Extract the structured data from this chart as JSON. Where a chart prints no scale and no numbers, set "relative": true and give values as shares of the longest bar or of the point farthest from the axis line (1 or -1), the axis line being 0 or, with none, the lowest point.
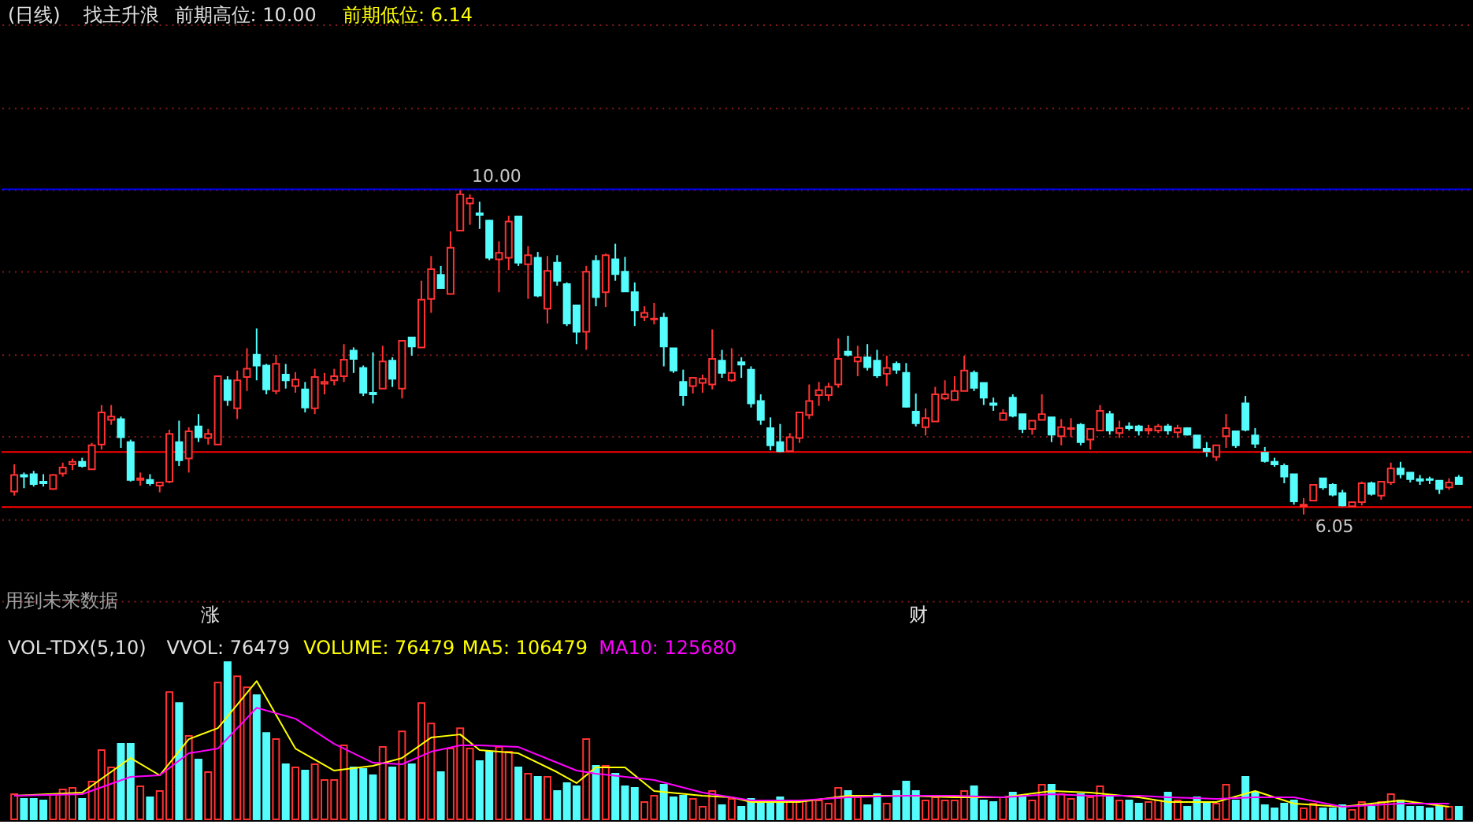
{
  "chart_data": [
    {
      "type": "candlestick",
      "title": "(日线)",
      "subtitle": "找主升浪",
      "categories": [
        null,
        null,
        null,
        null,
        null,
        null,
        null,
        null,
        null,
        null,
        null,
        null,
        null,
        null,
        null,
        null,
        null,
        null,
        null,
        null,
        null,
        null,
        null,
        null,
        null,
        null,
        null,
        null,
        null,
        null,
        null,
        null,
        null,
        null,
        null,
        null,
        null,
        null,
        null,
        null,
        null,
        null,
        null,
        null,
        null,
        null,
        null,
        null,
        null,
        null,
        null,
        null,
        null,
        null,
        null,
        null,
        null,
        null,
        null,
        null,
        null,
        null,
        null,
        null,
        null,
        null,
        null,
        null,
        null,
        null,
        null,
        null,
        null,
        null,
        null,
        null,
        null,
        null,
        null,
        null,
        null,
        null,
        null,
        null,
        null,
        null,
        null,
        null,
        null,
        null,
        null,
        null,
        null,
        null,
        null,
        null,
        null,
        null,
        null,
        null,
        null,
        null,
        null,
        null,
        null,
        null,
        null,
        null,
        null,
        null,
        null,
        null,
        null,
        null,
        null,
        null,
        null,
        null,
        null,
        null,
        null,
        null,
        null,
        null,
        null,
        null,
        null,
        null,
        null,
        null,
        null,
        null,
        null,
        null,
        null,
        null,
        null,
        null,
        null,
        null,
        null,
        null,
        null,
        null,
        null,
        null,
        null,
        null,
        null,
        null
      ],
      "ohlc": [
        [
          6.33,
          6.66,
          6.28,
          6.53
        ],
        [
          6.53,
          6.56,
          6.37,
          6.51
        ],
        [
          6.54,
          6.58,
          6.39,
          6.42
        ],
        [
          6.45,
          6.54,
          6.39,
          6.43
        ],
        [
          6.36,
          6.54,
          6.35,
          6.53
        ],
        [
          6.55,
          6.68,
          6.51,
          6.62
        ],
        [
          6.66,
          6.73,
          6.59,
          6.69
        ],
        [
          6.69,
          6.74,
          6.62,
          6.64
        ],
        [
          6.6,
          6.92,
          6.6,
          6.89
        ],
        [
          6.9,
          7.38,
          6.84,
          7.29
        ],
        [
          7.2,
          7.38,
          7.14,
          7.24
        ],
        [
          7.21,
          7.24,
          6.86,
          6.99
        ],
        [
          6.93,
          6.96,
          6.45,
          6.47
        ],
        [
          6.47,
          6.56,
          6.4,
          6.49
        ],
        [
          6.47,
          6.54,
          6.4,
          6.43
        ],
        [
          6.4,
          6.44,
          6.32,
          6.44
        ],
        [
          6.45,
          7.08,
          6.43,
          7.03
        ],
        [
          6.93,
          7.19,
          6.64,
          6.71
        ],
        [
          6.73,
          7.11,
          6.56,
          7.06
        ],
        [
          7.12,
          7.27,
          6.93,
          6.99
        ],
        [
          6.98,
          7.09,
          6.9,
          7.03
        ],
        [
          6.9,
          7.73,
          6.9,
          7.73
        ],
        [
          7.68,
          7.73,
          7.37,
          7.44
        ],
        [
          7.34,
          7.8,
          7.21,
          7.68
        ],
        [
          7.72,
          8.07,
          7.55,
          7.82
        ],
        [
          7.99,
          8.31,
          7.68,
          7.86
        ],
        [
          7.86,
          7.88,
          7.51,
          7.57
        ],
        [
          7.55,
          7.99,
          7.51,
          7.88
        ],
        [
          7.75,
          7.88,
          7.58,
          7.68
        ],
        [
          7.61,
          7.78,
          7.53,
          7.69
        ],
        [
          7.57,
          7.66,
          7.29,
          7.35
        ],
        [
          7.34,
          7.82,
          7.27,
          7.72
        ],
        [
          7.64,
          7.77,
          7.51,
          7.66
        ],
        [
          7.68,
          7.82,
          7.62,
          7.73
        ],
        [
          7.73,
          8.12,
          7.66,
          7.93
        ],
        [
          8.04,
          8.08,
          7.77,
          7.94
        ],
        [
          7.83,
          7.86,
          7.49,
          7.53
        ],
        [
          7.53,
          8.02,
          7.4,
          7.51
        ],
        [
          7.58,
          8.1,
          7.58,
          7.91
        ],
        [
          7.92,
          7.96,
          7.6,
          7.7
        ],
        [
          7.58,
          8.16,
          7.46,
          8.16
        ],
        [
          8.2,
          8.2,
          7.98,
          8.09
        ],
        [
          8.08,
          8.89,
          8.08,
          8.66
        ],
        [
          8.67,
          9.19,
          8.5,
          9.03
        ],
        [
          8.96,
          9.07,
          8.8,
          8.8
        ],
        [
          8.73,
          9.49,
          8.73,
          9.29
        ],
        [
          9.5,
          10.0,
          9.5,
          9.94
        ],
        [
          9.83,
          9.94,
          9.57,
          9.89
        ],
        [
          9.71,
          9.85,
          9.52,
          9.69
        ],
        [
          9.62,
          9.63,
          9.14,
          9.17
        ],
        [
          9.15,
          9.37,
          8.75,
          9.23
        ],
        [
          9.17,
          9.68,
          9.02,
          9.61
        ],
        [
          9.67,
          9.67,
          9.07,
          9.11
        ],
        [
          9.09,
          9.31,
          8.67,
          9.2
        ],
        [
          9.17,
          9.24,
          8.69,
          8.71
        ],
        [
          8.55,
          9.19,
          8.37,
          9.01
        ],
        [
          9.11,
          9.2,
          8.83,
          8.89
        ],
        [
          8.85,
          8.87,
          8.34,
          8.37
        ],
        [
          8.59,
          8.59,
          8.12,
          8.27
        ],
        [
          8.27,
          9.07,
          8.05,
          9.0
        ],
        [
          9.13,
          9.2,
          8.58,
          8.69
        ],
        [
          8.75,
          9.22,
          8.57,
          9.2
        ],
        [
          9.15,
          9.34,
          8.89,
          8.97
        ],
        [
          9.0,
          9.18,
          8.76,
          8.76
        ],
        [
          8.75,
          8.87,
          8.34,
          8.53
        ],
        [
          8.45,
          8.58,
          8.4,
          8.5
        ],
        [
          8.42,
          8.62,
          8.36,
          8.43
        ],
        [
          8.44,
          8.5,
          7.85,
          8.09
        ],
        [
          8.07,
          8.07,
          7.77,
          7.8
        ],
        [
          7.66,
          7.81,
          7.37,
          7.5
        ],
        [
          7.61,
          7.71,
          7.52,
          7.71
        ],
        [
          7.65,
          7.75,
          7.53,
          7.7
        ],
        [
          7.63,
          8.3,
          7.57,
          7.94
        ],
        [
          7.92,
          8.05,
          7.71,
          7.77
        ],
        [
          7.68,
          8.07,
          7.66,
          7.77
        ],
        [
          7.9,
          7.96,
          7.71,
          7.87
        ],
        [
          7.81,
          7.85,
          7.35,
          7.4
        ],
        [
          7.43,
          7.51,
          7.14,
          7.2
        ],
        [
          7.1,
          7.23,
          6.83,
          6.89
        ],
        [
          6.93,
          7.15,
          6.8,
          6.82
        ],
        [
          6.82,
          7.04,
          6.82,
          6.99
        ],
        [
          6.98,
          7.29,
          6.92,
          7.29
        ],
        [
          7.26,
          7.63,
          7.21,
          7.43
        ],
        [
          7.5,
          7.66,
          7.37,
          7.56
        ],
        [
          7.5,
          7.65,
          7.43,
          7.6
        ],
        [
          7.63,
          8.19,
          7.59,
          7.94
        ],
        [
          8.03,
          8.22,
          7.97,
          7.99
        ],
        [
          7.91,
          8.1,
          7.73,
          7.96
        ],
        [
          7.96,
          8.12,
          7.8,
          7.84
        ],
        [
          7.92,
          8.05,
          7.71,
          7.74
        ],
        [
          7.76,
          7.98,
          7.61,
          7.83
        ],
        [
          7.88,
          7.91,
          7.76,
          7.81
        ],
        [
          7.77,
          7.89,
          7.35,
          7.36
        ],
        [
          7.3,
          7.52,
          7.12,
          7.16
        ],
        [
          7.11,
          7.34,
          7.01,
          7.22
        ],
        [
          7.18,
          7.6,
          7.18,
          7.51
        ],
        [
          7.46,
          7.68,
          7.44,
          7.51
        ],
        [
          7.44,
          7.73,
          7.44,
          7.55
        ],
        [
          7.55,
          7.98,
          7.55,
          7.8
        ],
        [
          7.77,
          7.8,
          7.55,
          7.59
        ],
        [
          7.65,
          7.65,
          7.38,
          7.47
        ],
        [
          7.4,
          7.47,
          7.31,
          7.38
        ],
        [
          7.2,
          7.33,
          7.2,
          7.28
        ],
        [
          7.47,
          7.51,
          7.23,
          7.25
        ],
        [
          7.27,
          7.27,
          7.04,
          7.09
        ],
        [
          7.09,
          7.19,
          7.02,
          7.19
        ],
        [
          7.2,
          7.51,
          7.2,
          7.27
        ],
        [
          7.23,
          7.23,
          6.93,
          7.02
        ],
        [
          7.0,
          7.21,
          6.89,
          7.11
        ],
        [
          7.09,
          7.22,
          6.99,
          7.1
        ],
        [
          7.14,
          7.16,
          6.89,
          6.93
        ],
        [
          6.96,
          7.09,
          6.84,
          7.09
        ],
        [
          7.07,
          7.38,
          7.07,
          7.31
        ],
        [
          7.27,
          7.31,
          7.02,
          7.07
        ],
        [
          7.04,
          7.19,
          6.98,
          7.1
        ],
        [
          7.12,
          7.17,
          7.07,
          7.1
        ],
        [
          7.12,
          7.14,
          7.01,
          7.07
        ],
        [
          7.07,
          7.14,
          7.02,
          7.09
        ],
        [
          7.07,
          7.15,
          7.04,
          7.12
        ],
        [
          7.12,
          7.15,
          7.02,
          7.07
        ],
        [
          7.05,
          7.14,
          6.98,
          7.1
        ],
        [
          7.1,
          7.11,
          7.01,
          7.02
        ],
        [
          7.01,
          7.01,
          6.86,
          6.86
        ],
        [
          6.85,
          6.93,
          6.75,
          6.82
        ],
        [
          6.75,
          6.89,
          6.7,
          6.89
        ],
        [
          7.0,
          7.27,
          6.86,
          7.1
        ],
        [
          7.06,
          7.07,
          6.86,
          6.89
        ],
        [
          7.4,
          7.49,
          7.06,
          7.08
        ],
        [
          7.01,
          7.1,
          6.86,
          6.91
        ],
        [
          6.8,
          6.87,
          6.68,
          6.7
        ],
        [
          6.69,
          6.74,
          6.63,
          6.66
        ],
        [
          6.64,
          6.67,
          6.43,
          6.51
        ],
        [
          6.54,
          6.54,
          6.17,
          6.21
        ],
        [
          6.15,
          6.25,
          6.05,
          6.17
        ],
        [
          6.22,
          6.41,
          6.22,
          6.41
        ],
        [
          6.49,
          6.49,
          6.35,
          6.38
        ],
        [
          6.41,
          6.43,
          6.27,
          6.29
        ],
        [
          6.31,
          6.35,
          6.14,
          6.16
        ],
        [
          6.15,
          6.2,
          6.14,
          6.2
        ],
        [
          6.2,
          6.45,
          6.16,
          6.43
        ],
        [
          6.43,
          6.45,
          6.28,
          6.3
        ],
        [
          6.28,
          6.45,
          6.23,
          6.45
        ],
        [
          6.44,
          6.68,
          6.41,
          6.61
        ],
        [
          6.61,
          6.69,
          6.49,
          6.54
        ],
        [
          6.56,
          6.56,
          6.44,
          6.48
        ],
        [
          6.48,
          6.53,
          6.41,
          6.46
        ],
        [
          6.48,
          6.51,
          6.42,
          6.47
        ],
        [
          6.46,
          6.46,
          6.3,
          6.36
        ],
        [
          6.38,
          6.49,
          6.35,
          6.44
        ],
        [
          6.5,
          6.53,
          6.42,
          6.42
        ]
      ],
      "colors": [
        "#ff3232",
        "#54fcfc",
        "#54fcfc",
        "#54fcfc",
        "#ff3232",
        "#ff3232",
        "#ff3232",
        "#54fcfc",
        "#ff3232",
        "#ff3232",
        "#ff3232",
        "#54fcfc",
        "#54fcfc",
        "#ff3232",
        "#54fcfc",
        "#ff3232",
        "#ff3232",
        "#54fcfc",
        "#ff3232",
        "#54fcfc",
        "#ff3232",
        "#ff3232",
        "#54fcfc",
        "#ff3232",
        "#ff3232",
        "#54fcfc",
        "#54fcfc",
        "#ff3232",
        "#54fcfc",
        "#ff3232",
        "#54fcfc",
        "#ff3232",
        "#ff3232",
        "#ff3232",
        "#ff3232",
        "#54fcfc",
        "#54fcfc",
        "#54fcfc",
        "#ff3232",
        "#54fcfc",
        "#ff3232",
        "#54fcfc",
        "#ff3232",
        "#ff3232",
        "#54fcfc",
        "#ff3232",
        "#ff3232",
        "#ff3232",
        "#54fcfc",
        "#54fcfc",
        "#ff3232",
        "#ff3232",
        "#54fcfc",
        "#ff3232",
        "#54fcfc",
        "#ff3232",
        "#54fcfc",
        "#54fcfc",
        "#54fcfc",
        "#ff3232",
        "#54fcfc",
        "#ff3232",
        "#54fcfc",
        "#54fcfc",
        "#54fcfc",
        "#ff3232",
        "#ff3232",
        "#54fcfc",
        "#54fcfc",
        "#54fcfc",
        "#ff3232",
        "#ff3232",
        "#ff3232",
        "#54fcfc",
        "#ff3232",
        "#54fcfc",
        "#54fcfc",
        "#54fcfc",
        "#54fcfc",
        "#54fcfc",
        "#ff3232",
        "#ff3232",
        "#ff3232",
        "#ff3232",
        "#ff3232",
        "#ff3232",
        "#54fcfc",
        "#ff3232",
        "#54fcfc",
        "#54fcfc",
        "#ff3232",
        "#54fcfc",
        "#54fcfc",
        "#54fcfc",
        "#ff3232",
        "#ff3232",
        "#ff3232",
        "#ff3232",
        "#ff3232",
        "#54fcfc",
        "#54fcfc",
        "#54fcfc",
        "#ff3232",
        "#54fcfc",
        "#54fcfc",
        "#ff3232",
        "#ff3232",
        "#54fcfc",
        "#ff3232",
        "#ff3232",
        "#54fcfc",
        "#ff3232",
        "#ff3232",
        "#54fcfc",
        "#ff3232",
        "#54fcfc",
        "#54fcfc",
        "#ff3232",
        "#ff3232",
        "#54fcfc",
        "#ff3232",
        "#54fcfc",
        "#54fcfc",
        "#54fcfc",
        "#ff3232",
        "#ff3232",
        "#54fcfc",
        "#54fcfc",
        "#54fcfc",
        "#54fcfc",
        "#54fcfc",
        "#54fcfc",
        "#54fcfc",
        "#ff3232",
        "#ff3232",
        "#54fcfc",
        "#54fcfc",
        "#54fcfc",
        "#ff3232",
        "#ff3232",
        "#54fcfc",
        "#ff3232",
        "#ff3232",
        "#54fcfc",
        "#54fcfc",
        "#54fcfc",
        "#54fcfc",
        "#54fcfc",
        "#ff3232",
        "#54fcfc"
      ],
      "yticks": [
        {
          "value": 5,
          "label": null
        },
        {
          "value": 6,
          "label": null
        },
        {
          "value": 7,
          "label": null
        },
        {
          "value": 8,
          "label": null
        },
        {
          "value": 9,
          "label": null
        },
        {
          "value": 10,
          "label": null
        },
        {
          "value": 11,
          "label": null
        },
        {
          "value": 12,
          "label": null
        }
      ],
      "grid": "y",
      "tick_labels": false,
      "ref_lines": [
        {
          "axis": "y",
          "value": 10.0,
          "color": "#0000ff"
        },
        {
          "axis": "y",
          "value": 6.14,
          "color": "#ff0000"
        },
        {
          "axis": "y",
          "value": 6.81,
          "color": "#ff0000"
        }
      ],
      "annotations": [
        "前期高位: 10.00",
        "前期低位: 6.14",
        "用到未来数据",
        "涨",
        "财",
        {
          "text": "10.00",
          "y": 10.0
        },
        {
          "text": "6.05",
          "y": 6.05
        }
      ]
    },
    {
      "type": "bar",
      "relative": true,
      "legend_title": "VOL-TDX(5,10)",
      "legend": "top left",
      "tick_labels": false,
      "categories": [
        null,
        null,
        null,
        null,
        null,
        null,
        null,
        null,
        null,
        null,
        null,
        null,
        null,
        null,
        null,
        null,
        null,
        null,
        null,
        null,
        null,
        null,
        null,
        null,
        null,
        null,
        null,
        null,
        null,
        null,
        null,
        null,
        null,
        null,
        null,
        null,
        null,
        null,
        null,
        null,
        null,
        null,
        null,
        null,
        null,
        null,
        null,
        null,
        null,
        null,
        null,
        null,
        null,
        null,
        null,
        null,
        null,
        null,
        null,
        null,
        null,
        null,
        null,
        null,
        null,
        null,
        null,
        null,
        null,
        null,
        null,
        null,
        null,
        null,
        null,
        null,
        null,
        null,
        null,
        null,
        null,
        null,
        null,
        null,
        null,
        null,
        null,
        null,
        null,
        null,
        null,
        null,
        null,
        null,
        null,
        null,
        null,
        null,
        null,
        null,
        null,
        null,
        null,
        null,
        null,
        null,
        null,
        null,
        null,
        null,
        null,
        null,
        null,
        null,
        null,
        null,
        null,
        null,
        null,
        null,
        null,
        null,
        null,
        null,
        null,
        null,
        null,
        null,
        null,
        null,
        null,
        null,
        null,
        null,
        null,
        null,
        null,
        null,
        null,
        null,
        null,
        null,
        null,
        null,
        null,
        null,
        null,
        null,
        null,
        null
      ],
      "annotations": [
        "VVOL: 76479",
        "VOLUME: 76479"
      ],
      "series": [
        {
          "type": "bar",
          "colors": [
            "#ff3232",
            "#54fcfc",
            "#54fcfc",
            "#54fcfc",
            "#ff3232",
            "#ff3232",
            "#ff3232",
            "#54fcfc",
            "#ff3232",
            "#ff3232",
            "#ff3232",
            "#54fcfc",
            "#54fcfc",
            "#ff3232",
            "#54fcfc",
            "#ff3232",
            "#ff3232",
            "#54fcfc",
            "#ff3232",
            "#54fcfc",
            "#ff3232",
            "#ff3232",
            "#54fcfc",
            "#ff3232",
            "#ff3232",
            "#54fcfc",
            "#54fcfc",
            "#ff3232",
            "#54fcfc",
            "#ff3232",
            "#54fcfc",
            "#ff3232",
            "#ff3232",
            "#ff3232",
            "#ff3232",
            "#54fcfc",
            "#54fcfc",
            "#54fcfc",
            "#ff3232",
            "#54fcfc",
            "#ff3232",
            "#54fcfc",
            "#ff3232",
            "#ff3232",
            "#54fcfc",
            "#ff3232",
            "#ff3232",
            "#ff3232",
            "#54fcfc",
            "#54fcfc",
            "#ff3232",
            "#ff3232",
            "#54fcfc",
            "#ff3232",
            "#54fcfc",
            "#ff3232",
            "#54fcfc",
            "#54fcfc",
            "#54fcfc",
            "#ff3232",
            "#54fcfc",
            "#ff3232",
            "#54fcfc",
            "#54fcfc",
            "#54fcfc",
            "#ff3232",
            "#ff3232",
            "#54fcfc",
            "#54fcfc",
            "#54fcfc",
            "#ff3232",
            "#ff3232",
            "#ff3232",
            "#54fcfc",
            "#ff3232",
            "#54fcfc",
            "#54fcfc",
            "#54fcfc",
            "#54fcfc",
            "#54fcfc",
            "#ff3232",
            "#ff3232",
            "#ff3232",
            "#ff3232",
            "#ff3232",
            "#ff3232",
            "#54fcfc",
            "#ff3232",
            "#54fcfc",
            "#54fcfc",
            "#ff3232",
            "#54fcfc",
            "#54fcfc",
            "#54fcfc",
            "#ff3232",
            "#ff3232",
            "#ff3232",
            "#ff3232",
            "#ff3232",
            "#54fcfc",
            "#54fcfc",
            "#54fcfc",
            "#ff3232",
            "#54fcfc",
            "#54fcfc",
            "#ff3232",
            "#ff3232",
            "#54fcfc",
            "#ff3232",
            "#ff3232",
            "#54fcfc",
            "#ff3232",
            "#ff3232",
            "#54fcfc",
            "#ff3232",
            "#54fcfc",
            "#54fcfc",
            "#ff3232",
            "#ff3232",
            "#54fcfc",
            "#ff3232",
            "#54fcfc",
            "#54fcfc",
            "#54fcfc",
            "#ff3232",
            "#ff3232",
            "#54fcfc",
            "#54fcfc",
            "#54fcfc",
            "#54fcfc",
            "#54fcfc",
            "#54fcfc",
            "#54fcfc",
            "#ff3232",
            "#ff3232",
            "#54fcfc",
            "#54fcfc",
            "#54fcfc",
            "#ff3232",
            "#ff3232",
            "#54fcfc",
            "#ff3232",
            "#ff3232",
            "#54fcfc",
            "#54fcfc",
            "#54fcfc",
            "#54fcfc",
            "#54fcfc",
            "#ff3232",
            "#54fcfc"
          ],
          "values": [
            0.16,
            0.13,
            0.13,
            0.12,
            0.16,
            0.19,
            0.2,
            0.13,
            0.24,
            0.44,
            0.33,
            0.48,
            0.48,
            0.21,
            0.14,
            0.18,
            0.81,
            0.74,
            0.53,
            0.38,
            0.3,
            0.87,
            1,
            0.91,
            0.84,
            0.79,
            0.55,
            0.51,
            0.35,
            0.33,
            0.31,
            0.35,
            0.25,
            0.25,
            0.47,
            0.33,
            0.32,
            0.28,
            0.46,
            0.33,
            0.56,
            0.35,
            0.74,
            0.61,
            0.3,
            0.45,
            0.58,
            0.45,
            0.37,
            0.43,
            0.46,
            0.43,
            0.33,
            0.29,
            0.27,
            0.27,
            0.18,
            0.23,
            0.21,
            0.51,
            0.34,
            0.34,
            0.29,
            0.21,
            0.2,
            0.11,
            0.15,
            0.22,
            0.14,
            0.15,
            0.13,
            0.08,
            0.18,
            0.09,
            0.13,
            0.08,
            0.13,
            0.11,
            0.11,
            0.14,
            0.11,
            0.12,
            0.12,
            0.12,
            0.1,
            0.2,
            0.18,
            0.14,
            0.09,
            0.16,
            0.1,
            0.18,
            0.24,
            0.18,
            0.12,
            0.14,
            0.12,
            0.12,
            0.18,
            0.21,
            0.12,
            0.11,
            0.14,
            0.17,
            0.14,
            0.12,
            0.22,
            0.22,
            0.16,
            0.13,
            0.16,
            0.14,
            0.21,
            0.15,
            0.12,
            0.12,
            0.1,
            0.11,
            0.12,
            0.17,
            0.12,
            0.08,
            0.14,
            0.1,
            0.1,
            0.22,
            0.12,
            0.27,
            0.17,
            0.09,
            0.07,
            0.1,
            0.12,
            0.07,
            0.1,
            0.07,
            0.07,
            0.09,
            0.06,
            0.11,
            0.08,
            0.11,
            0.16,
            0.12,
            0.08,
            0.08,
            0.07,
            0.08,
            0.08,
            0.08
          ]
        },
        {
          "type": "line",
          "name": "MA5: 106479",
          "color": "#ffff00",
          "values": [
            0.15,
            null,
            null,
            null,
            null,
            null,
            null,
            0.17,
            null,
            null,
            null,
            null,
            0.39,
            null,
            null,
            0.28,
            null,
            null,
            0.51,
            null,
            null,
            0.58,
            null,
            null,
            null,
            0.88,
            null,
            null,
            null,
            0.45,
            null,
            null,
            null,
            0.31,
            null,
            null,
            null,
            0.34,
            null,
            null,
            0.39,
            null,
            null,
            0.52,
            null,
            null,
            0.54,
            null,
            0.44,
            null,
            null,
            null,
            0.42,
            null,
            null,
            null,
            0.3,
            null,
            0.23,
            null,
            0.33,
            null,
            null,
            0.33,
            null,
            null,
            0.18,
            null,
            null,
            null,
            null,
            0.15,
            null,
            null,
            0.14,
            null,
            0.11,
            null,
            null,
            null,
            null,
            0.11,
            null,
            null,
            null,
            null,
            0.15,
            null,
            null,
            null,
            null,
            null,
            0.15,
            null,
            null,
            null,
            null,
            0.14,
            null,
            null,
            null,
            null,
            0.14,
            null,
            null,
            null,
            null,
            0.18,
            null,
            null,
            null,
            0.17,
            null,
            null,
            null,
            null,
            0.14,
            null,
            null,
            0.11,
            null,
            null,
            null,
            null,
            0.11,
            null,
            null,
            null,
            0.18,
            null,
            null,
            null,
            0.1,
            null,
            null,
            null,
            null,
            0.08,
            null,
            null,
            null,
            null,
            null,
            0.12,
            null,
            null,
            null,
            null,
            0.08,
            null
          ]
        },
        {
          "type": "line",
          "name": "MA10: 125680",
          "color": "#ff00ff",
          "values": [
            0.15,
            null,
            null,
            null,
            null,
            null,
            null,
            0.16,
            null,
            null,
            null,
            null,
            0.27,
            null,
            null,
            0.28,
            null,
            null,
            0.42,
            null,
            null,
            0.45,
            null,
            null,
            null,
            0.71,
            null,
            null,
            null,
            0.64,
            null,
            null,
            null,
            0.48,
            null,
            null,
            null,
            0.36,
            null,
            null,
            0.35,
            null,
            null,
            0.43,
            null,
            null,
            0.47,
            null,
            0.47,
            null,
            null,
            null,
            0.46,
            null,
            null,
            null,
            0.36,
            null,
            0.31,
            null,
            0.29,
            null,
            null,
            null,
            null,
            null,
            0.25,
            null,
            null,
            null,
            null,
            0.17,
            null,
            null,
            0.14,
            null,
            0.12,
            null,
            null,
            null,
            null,
            0.12,
            null,
            null,
            null,
            null,
            0.14,
            null,
            null,
            null,
            null,
            null,
            0.15,
            null,
            null,
            null,
            null,
            0.15,
            null,
            null,
            null,
            null,
            0.14,
            null,
            null,
            null,
            null,
            0.16,
            null,
            null,
            null,
            0.15,
            null,
            null,
            null,
            null,
            0.15,
            null,
            null,
            0.14,
            null,
            null,
            null,
            null,
            0.13,
            null,
            null,
            null,
            0.14,
            null,
            null,
            null,
            0.14,
            null,
            null,
            null,
            null,
            0.08,
            null,
            null,
            null,
            null,
            null,
            0.1,
            null,
            null,
            null,
            null,
            0.1,
            null
          ]
        }
      ]
    }
  ]
}
